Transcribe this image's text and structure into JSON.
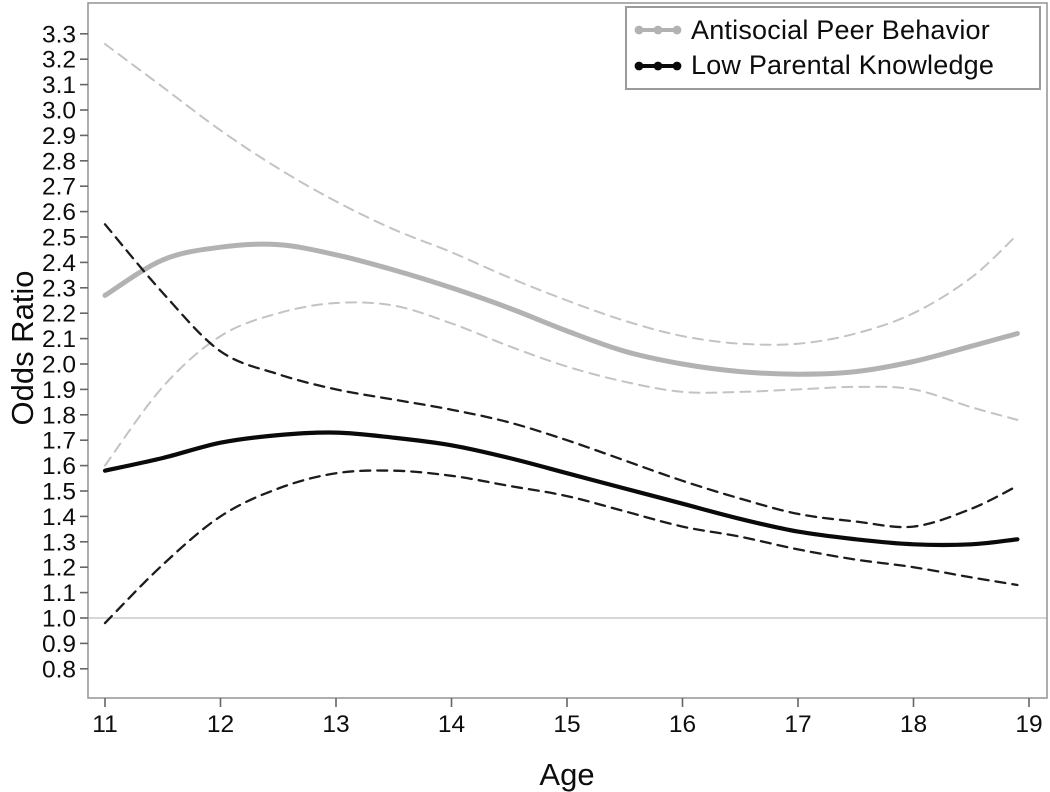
{
  "chart_data": {
    "type": "line",
    "title": "",
    "xlabel": "Age",
    "ylabel": "Odds Ratio",
    "x_ticks": [
      11,
      12,
      13,
      14,
      15,
      16,
      17,
      18,
      19
    ],
    "y_ticks": [
      3.3,
      3.2,
      3.1,
      3.0,
      2.9,
      2.8,
      2.7,
      2.6,
      2.5,
      2.4,
      2.3,
      2.2,
      2.1,
      2.0,
      1.9,
      1.8,
      1.7,
      1.6,
      1.5,
      1.4,
      1.3,
      1.2,
      1.1,
      1.0,
      0.9,
      0.8
    ],
    "xlim": [
      10.85,
      19.17
    ],
    "ylim": [
      0.68,
      3.42
    ],
    "grid": "off",
    "reference_line_y": 1.0,
    "x": [
      11,
      11.5,
      12,
      12.5,
      13,
      13.5,
      14,
      14.5,
      15,
      15.5,
      16,
      16.5,
      17,
      17.5,
      18,
      18.5,
      18.9
    ],
    "series": [
      {
        "name": "Antisocial Peer Behavior 95% CI upper",
        "role": "ci-upper",
        "color": "#c3c3c3",
        "style": "dashed",
        "width": 2,
        "values": [
          3.26,
          3.09,
          2.92,
          2.77,
          2.64,
          2.53,
          2.44,
          2.34,
          2.25,
          2.17,
          2.11,
          2.08,
          2.08,
          2.12,
          2.2,
          2.34,
          2.51
        ]
      },
      {
        "name": "Antisocial Peer Behavior 95% CI lower",
        "role": "ci-lower",
        "color": "#c3c3c3",
        "style": "dashed",
        "width": 2,
        "values": [
          1.6,
          1.91,
          2.11,
          2.2,
          2.24,
          2.23,
          2.16,
          2.07,
          1.99,
          1.93,
          1.89,
          1.89,
          1.9,
          1.91,
          1.9,
          1.83,
          1.78
        ]
      },
      {
        "name": "Antisocial Peer Behavior",
        "role": "mean",
        "color": "#b2b2b2",
        "style": "solid",
        "width": 5,
        "values": [
          2.27,
          2.41,
          2.46,
          2.47,
          2.43,
          2.37,
          2.3,
          2.22,
          2.13,
          2.05,
          2.0,
          1.97,
          1.96,
          1.97,
          2.01,
          2.07,
          2.12
        ]
      },
      {
        "name": "Low Parental Knowledge 95% CI upper",
        "role": "ci-upper",
        "color": "#1c1c1c",
        "style": "dashed",
        "width": 2.3,
        "values": [
          2.55,
          2.28,
          2.05,
          1.96,
          1.9,
          1.86,
          1.82,
          1.77,
          1.7,
          1.62,
          1.54,
          1.47,
          1.41,
          1.38,
          1.36,
          1.43,
          1.52
        ]
      },
      {
        "name": "Low Parental Knowledge 95% CI lower",
        "role": "ci-lower",
        "color": "#1c1c1c",
        "style": "dashed",
        "width": 2.3,
        "values": [
          0.98,
          1.21,
          1.4,
          1.51,
          1.57,
          1.58,
          1.56,
          1.52,
          1.48,
          1.42,
          1.36,
          1.32,
          1.27,
          1.23,
          1.2,
          1.16,
          1.13
        ]
      },
      {
        "name": "Low Parental Knowledge",
        "role": "mean",
        "color": "#0a0a0a",
        "style": "solid",
        "width": 4.2,
        "values": [
          1.58,
          1.63,
          1.69,
          1.72,
          1.73,
          1.71,
          1.68,
          1.63,
          1.57,
          1.51,
          1.45,
          1.39,
          1.34,
          1.31,
          1.29,
          1.29,
          1.31
        ]
      }
    ],
    "legend": {
      "position": "top-right",
      "entries": [
        {
          "label": "Antisocial Peer Behavior",
          "color": "#b2b2b2"
        },
        {
          "label": "Low Parental Knowledge",
          "color": "#0a0a0a"
        }
      ]
    },
    "colors": {
      "frame": "#999999",
      "tick": "#666666",
      "reference_line": "#c9c9c9",
      "text": "#0d0d0d"
    }
  }
}
